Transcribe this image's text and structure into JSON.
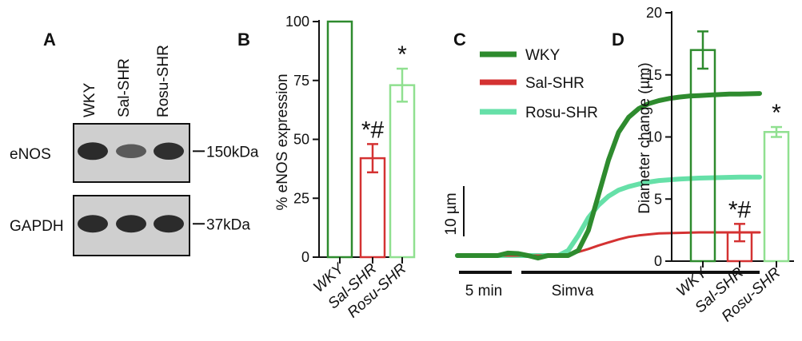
{
  "panels": {
    "a": {
      "label": "A",
      "lanes": [
        "WKY",
        "Sal-SHR",
        "Rosu-SHR"
      ],
      "rows": [
        {
          "protein": "eNOS",
          "marker": "150kDa",
          "intensity": [
            1.0,
            0.55,
            0.95
          ]
        },
        {
          "protein": "GAPDH",
          "marker": "37kDa",
          "intensity": [
            1.0,
            1.0,
            1.0
          ]
        }
      ]
    },
    "b": {
      "label": "B"
    },
    "c": {
      "label": "C"
    },
    "d": {
      "label": "D"
    }
  },
  "colors": {
    "wky": "#2e8b2e",
    "sal": "#d43232",
    "rosu": "#66e0a8",
    "rosu_bar": "#90e090",
    "blot_bg": "#cfcfcf",
    "band": "#222222"
  },
  "chart_data": [
    {
      "type": "bar",
      "panel": "B",
      "categories": [
        "WKY",
        "Sal-SHR",
        "Rosu-SHR"
      ],
      "values": [
        100,
        42,
        73
      ],
      "errors": [
        0,
        6,
        7
      ],
      "significance": [
        "",
        "*#",
        "*"
      ],
      "ylabel": "% eNOS expression",
      "ylim": [
        0,
        100
      ],
      "yticks": [
        0,
        25,
        50,
        75,
        100
      ]
    },
    {
      "type": "line",
      "panel": "C",
      "series": [
        {
          "name": "WKY",
          "x": [
            0,
            1,
            2,
            3,
            4,
            5,
            6,
            7,
            8,
            9,
            10,
            11,
            12,
            13,
            14,
            15,
            16,
            17,
            18,
            19,
            20,
            21,
            22,
            23,
            24,
            25,
            26,
            27,
            28,
            30
          ],
          "y": [
            0,
            0,
            0,
            0,
            0,
            0.5,
            0.4,
            0,
            -0.5,
            0,
            0,
            0,
            1,
            5,
            12,
            19,
            24.5,
            27.5,
            29.2,
            30.2,
            30.8,
            31.2,
            31.5,
            31.7,
            31.8,
            31.9,
            32,
            32.1,
            32.1,
            32.2
          ]
        },
        {
          "name": "Sal-SHR",
          "x": [
            0,
            4,
            8,
            10,
            11,
            12,
            13,
            14,
            15,
            16,
            17,
            18,
            19,
            20,
            22,
            24,
            26,
            28,
            30
          ],
          "y": [
            0,
            0,
            0,
            0,
            0.2,
            0.7,
            1.3,
            2,
            2.6,
            3.2,
            3.7,
            4,
            4.2,
            4.4,
            4.5,
            4.6,
            4.6,
            4.6,
            4.6
          ]
        },
        {
          "name": "Rosu-SHR",
          "x": [
            0,
            4,
            8,
            10,
            11,
            12,
            13,
            14,
            15,
            16,
            17,
            18,
            19,
            20,
            22,
            24,
            26,
            28,
            30
          ],
          "y": [
            0,
            0,
            0,
            0,
            1,
            4,
            7.5,
            10,
            11.8,
            13,
            13.7,
            14.2,
            14.6,
            14.9,
            15.2,
            15.4,
            15.5,
            15.6,
            15.6
          ]
        }
      ],
      "scale_bar_y": "10 µm",
      "scale_bar_x": "5 min",
      "treatment_label": "Simva"
    },
    {
      "type": "bar",
      "panel": "D",
      "categories": [
        "WKY",
        "Sal-SHR",
        "Rosu-SHR"
      ],
      "values": [
        17.0,
        2.3,
        10.4
      ],
      "errors": [
        1.5,
        0.7,
        0.4
      ],
      "significance": [
        "",
        "*#",
        "*"
      ],
      "ylabel": "Diameter change (µm)",
      "ylim": [
        0,
        20
      ],
      "yticks": [
        0,
        5,
        10,
        15,
        20
      ]
    }
  ]
}
